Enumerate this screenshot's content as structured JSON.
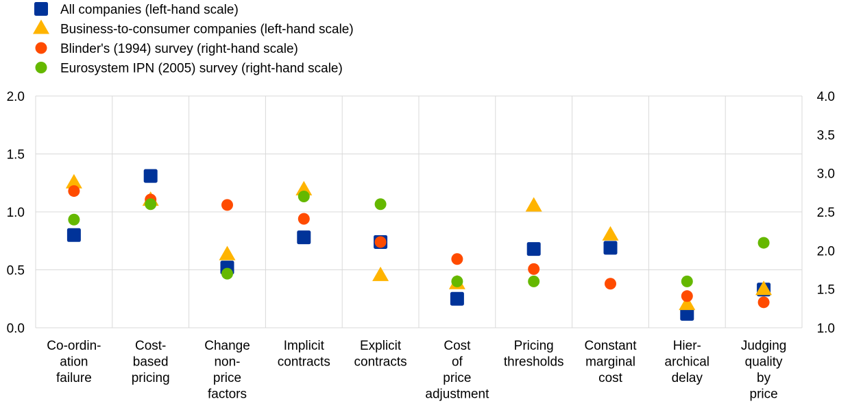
{
  "chart_data": {
    "type": "scatter",
    "legend_position": "top-left",
    "grid": true,
    "categories": [
      [
        "Co-ordin-",
        "ation",
        "failure"
      ],
      [
        "Cost-",
        "based",
        "pricing"
      ],
      [
        "Change",
        "non-",
        "price",
        "factors"
      ],
      [
        "Implicit",
        "contracts"
      ],
      [
        "Explicit",
        "contracts"
      ],
      [
        "Cost",
        "of",
        "price",
        "adjustment"
      ],
      [
        "Pricing",
        "thresholds"
      ],
      [
        "Constant",
        "marginal",
        "cost"
      ],
      [
        "Hier-",
        "archical",
        "delay"
      ],
      [
        "Judging",
        "quality",
        "by",
        "price"
      ]
    ],
    "left_axis": {
      "ylim": [
        0.0,
        2.0
      ],
      "ticks": [
        "0.0",
        "0.5",
        "1.0",
        "1.5",
        "2.0"
      ]
    },
    "right_axis": {
      "ylim": [
        1.0,
        4.0
      ],
      "ticks": [
        "1.0",
        "1.5",
        "2.0",
        "2.5",
        "3.0",
        "3.5",
        "4.0"
      ]
    },
    "series": [
      {
        "name": "All companies (left-hand scale)",
        "axis": "left",
        "marker": "square",
        "color": "#003399",
        "values": [
          0.8,
          1.31,
          0.52,
          0.78,
          0.74,
          0.25,
          0.68,
          0.69,
          0.12,
          0.33
        ]
      },
      {
        "name": "Business-to-consumer companies (left-hand scale)",
        "axis": "left",
        "marker": "triangle",
        "color": "#FFB400",
        "values": [
          1.25,
          1.1,
          0.63,
          1.19,
          0.45,
          0.38,
          1.05,
          0.8,
          0.2,
          0.33
        ]
      },
      {
        "name": "Blinder's (1994) survey (right-hand scale)",
        "axis": "right",
        "marker": "circle",
        "color": "#FF4B00",
        "values": [
          2.77,
          2.66,
          2.59,
          2.41,
          2.11,
          1.89,
          1.76,
          1.57,
          1.41,
          1.33
        ]
      },
      {
        "name": "Eurosystem IPN (2005) survey (right-hand scale)",
        "axis": "right",
        "marker": "circle",
        "color": "#65B800",
        "values": [
          2.4,
          2.6,
          1.7,
          2.7,
          2.6,
          1.6,
          1.6,
          null,
          1.6,
          2.1
        ]
      }
    ]
  }
}
